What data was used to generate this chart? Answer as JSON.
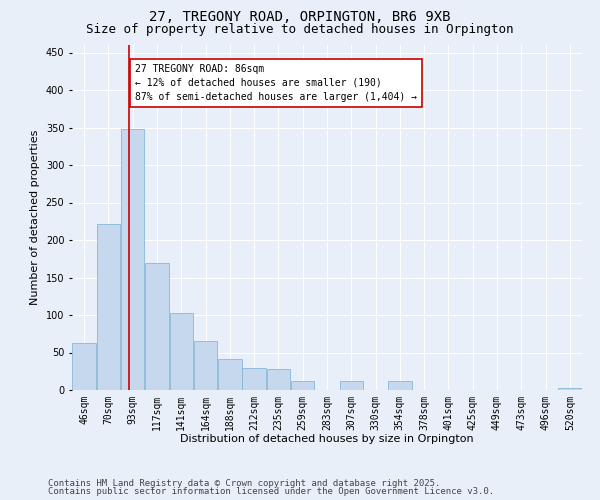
{
  "title_line1": "27, TREGONY ROAD, ORPINGTON, BR6 9XB",
  "title_line2": "Size of property relative to detached houses in Orpington",
  "xlabel": "Distribution of detached houses by size in Orpington",
  "ylabel": "Number of detached properties",
  "categories": [
    "46sqm",
    "70sqm",
    "93sqm",
    "117sqm",
    "141sqm",
    "164sqm",
    "188sqm",
    "212sqm",
    "235sqm",
    "259sqm",
    "283sqm",
    "307sqm",
    "330sqm",
    "354sqm",
    "378sqm",
    "401sqm",
    "425sqm",
    "449sqm",
    "473sqm",
    "496sqm",
    "520sqm"
  ],
  "values": [
    63,
    222,
    348,
    170,
    103,
    65,
    42,
    30,
    28,
    12,
    0,
    12,
    0,
    12,
    0,
    0,
    0,
    0,
    0,
    0,
    3
  ],
  "bar_color": "#c5d8ee",
  "bar_edge_color": "#7aafd4",
  "vline_x": 1.85,
  "vline_color": "#cc0000",
  "annotation_text": "27 TREGONY ROAD: 86sqm\n← 12% of detached houses are smaller (190)\n87% of semi-detached houses are larger (1,404) →",
  "annotation_box_color": "#ffffff",
  "annotation_box_edge": "#cc0000",
  "ylim": [
    0,
    460
  ],
  "yticks": [
    0,
    50,
    100,
    150,
    200,
    250,
    300,
    350,
    400,
    450
  ],
  "bg_color": "#e8eff8",
  "plot_bg_color": "#e8eff8",
  "footer_line1": "Contains HM Land Registry data © Crown copyright and database right 2025.",
  "footer_line2": "Contains public sector information licensed under the Open Government Licence v3.0.",
  "title_fontsize": 10,
  "subtitle_fontsize": 9,
  "axis_label_fontsize": 8,
  "tick_fontsize": 7,
  "annotation_fontsize": 7,
  "footer_fontsize": 6.5
}
